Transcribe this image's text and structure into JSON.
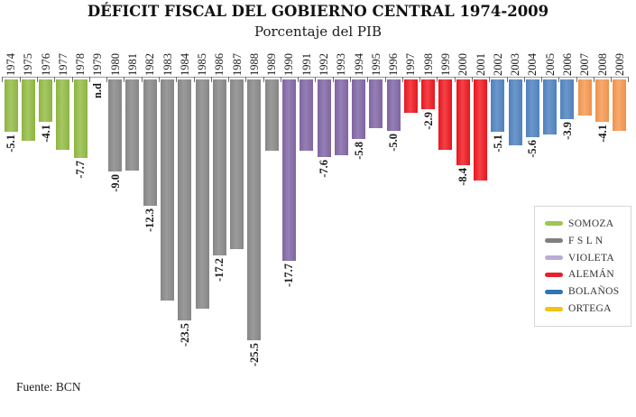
{
  "title": "DÉFICIT FISCAL DEL GOBIERNO CENTRAL 1974-2009",
  "subtitle": "Porcentaje del PIB",
  "source": "Fuente: BCN",
  "chart_data": {
    "type": "bar",
    "title": "DÉFICIT FISCAL DEL GOBIERNO CENTRAL 1974-2009",
    "subtitle": "Porcentaje del PIB",
    "unit": "% del PIB",
    "orientation": "vertical-negative",
    "value_axis_visible": false,
    "category_axis_position": "top",
    "ylim": [
      -27,
      0
    ],
    "grid": false,
    "legend_position": "bottom-right",
    "periods": [
      {
        "name": "SOMOZA",
        "years": "1974-1978",
        "color": "#8CB43F",
        "color_light": "#A6C766"
      },
      {
        "name": "FSLN",
        "years": "1979-1989",
        "color": "#868686",
        "color_light": "#9B9B9B"
      },
      {
        "name": "VIOLETA",
        "years": "1990-1996",
        "color": "#8064A2",
        "color_light": "#9480B4"
      },
      {
        "name": "ALEMAN",
        "years": "1997-2001",
        "color": "#E9151D",
        "color_light": "#F14348"
      },
      {
        "name": "BOLANOS",
        "years": "2002-2006",
        "color": "#4F81BD",
        "color_light": "#6C97CA"
      },
      {
        "name": "ORTEGA",
        "years": "2007-2009",
        "color": "#F0914A",
        "color_light": "#F5AB70"
      }
    ],
    "points": [
      {
        "year": "1974",
        "value": -5.1,
        "label": "-5.1",
        "period": "SOMOZA"
      },
      {
        "year": "1975",
        "value": -6.0,
        "label": null,
        "period": "SOMOZA"
      },
      {
        "year": "1976",
        "value": -4.1,
        "label": "-4.1",
        "period": "SOMOZA"
      },
      {
        "year": "1977",
        "value": -6.9,
        "label": null,
        "period": "SOMOZA"
      },
      {
        "year": "1978",
        "value": -7.7,
        "label": "-7.7",
        "period": "SOMOZA"
      },
      {
        "year": "1979",
        "value": null,
        "label": "n.d",
        "period": "FSLN"
      },
      {
        "year": "1980",
        "value": -9.0,
        "label": "-9.0",
        "period": "FSLN"
      },
      {
        "year": "1981",
        "value": -8.9,
        "label": null,
        "period": "FSLN"
      },
      {
        "year": "1982",
        "value": -12.3,
        "label": "-12.3",
        "period": "FSLN"
      },
      {
        "year": "1983",
        "value": -21.6,
        "label": null,
        "period": "FSLN"
      },
      {
        "year": "1984",
        "value": -23.5,
        "label": "-23.5",
        "period": "FSLN"
      },
      {
        "year": "1985",
        "value": -22.4,
        "label": null,
        "period": "FSLN"
      },
      {
        "year": "1986",
        "value": -17.2,
        "label": "-17.2",
        "period": "FSLN"
      },
      {
        "year": "1987",
        "value": -16.6,
        "label": null,
        "period": "FSLN"
      },
      {
        "year": "1988",
        "value": -25.5,
        "label": "-25.5",
        "period": "FSLN"
      },
      {
        "year": "1989",
        "value": -7.0,
        "label": null,
        "period": "FSLN"
      },
      {
        "year": "1990",
        "value": -17.7,
        "label": "-17.7",
        "period": "VIOLETA"
      },
      {
        "year": "1991",
        "value": -7.0,
        "label": null,
        "period": "VIOLETA"
      },
      {
        "year": "1992",
        "value": -7.6,
        "label": "-7.6",
        "period": "VIOLETA"
      },
      {
        "year": "1993",
        "value": -7.4,
        "label": null,
        "period": "VIOLETA"
      },
      {
        "year": "1994",
        "value": -5.8,
        "label": "-5.8",
        "period": "VIOLETA"
      },
      {
        "year": "1995",
        "value": -4.8,
        "label": null,
        "period": "VIOLETA"
      },
      {
        "year": "1996",
        "value": -5.0,
        "label": "-5.0",
        "period": "VIOLETA"
      },
      {
        "year": "1997",
        "value": -3.3,
        "label": null,
        "period": "ALEMAN"
      },
      {
        "year": "1998",
        "value": -2.9,
        "label": "-2.9",
        "period": "ALEMAN"
      },
      {
        "year": "1999",
        "value": -6.9,
        "label": null,
        "period": "ALEMAN"
      },
      {
        "year": "2000",
        "value": -8.4,
        "label": "-8.4",
        "period": "ALEMAN"
      },
      {
        "year": "2001",
        "value": -9.9,
        "label": null,
        "period": "ALEMAN"
      },
      {
        "year": "2002",
        "value": -5.1,
        "label": "-5.1",
        "period": "BOLANOS"
      },
      {
        "year": "2003",
        "value": -6.4,
        "label": null,
        "period": "BOLANOS"
      },
      {
        "year": "2004",
        "value": -5.6,
        "label": "-5.6",
        "period": "BOLANOS"
      },
      {
        "year": "2005",
        "value": -5.4,
        "label": null,
        "period": "BOLANOS"
      },
      {
        "year": "2006",
        "value": -3.9,
        "label": "-3.9",
        "period": "BOLANOS"
      },
      {
        "year": "2007",
        "value": -3.5,
        "label": null,
        "period": "ORTEGA"
      },
      {
        "year": "2008",
        "value": -4.1,
        "label": "-4.1",
        "period": "ORTEGA"
      },
      {
        "year": "2009",
        "value": -5.0,
        "label": null,
        "period": "ORTEGA"
      }
    ]
  },
  "legend": {
    "items": [
      {
        "label": "SOMOZA",
        "color": "#9CC652"
      },
      {
        "label": "F S L N",
        "color": "#808080"
      },
      {
        "label": "VIOLETA",
        "color": "#BCABD4"
      },
      {
        "label": "ALEMÁN",
        "color": "#E6202C"
      },
      {
        "label": "BOLAÑOS",
        "color": "#2E75B6"
      },
      {
        "label": "ORTEGA",
        "color": "#F2C314"
      }
    ]
  }
}
